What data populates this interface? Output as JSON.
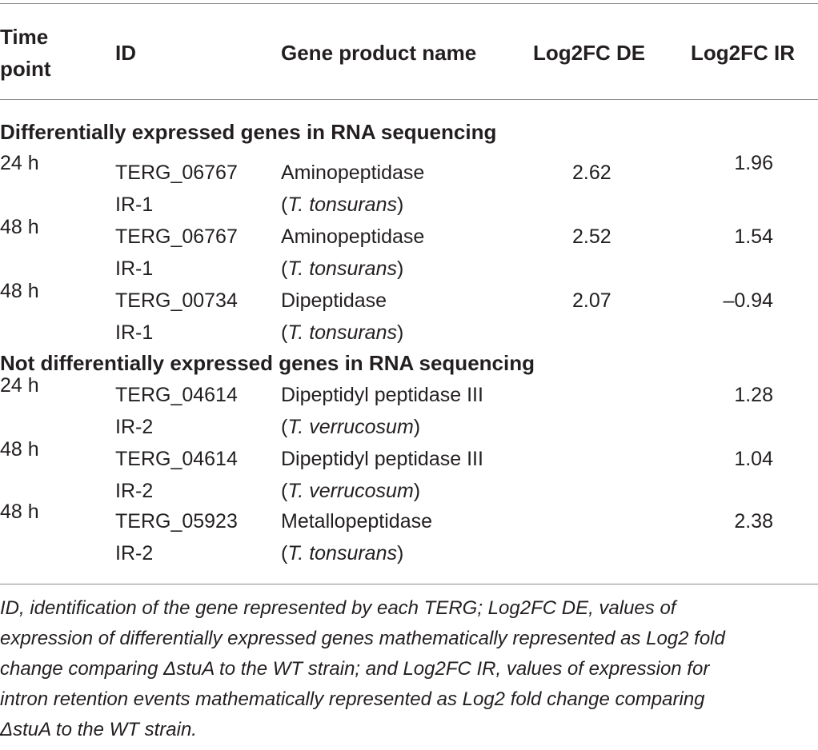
{
  "table": {
    "headers": {
      "time_line1": "Time",
      "time_line2": "point",
      "id": "ID",
      "gene_product_name": "Gene product name",
      "log2fc_de": "Log2FC DE",
      "log2fc_ir": "Log2FC IR"
    },
    "section1_title": "Differentially expressed genes in RNA sequencing",
    "section2_title": "Not differentially expressed genes in RNA sequencing",
    "rows": [
      {
        "time": "24 h",
        "id_line1": "TERG_06767",
        "id_line2": "IR-1",
        "name": "Aminopeptidase",
        "species_open": "(",
        "species": "T. tonsurans",
        "species_close": ")",
        "de": "2.62",
        "ir": "1.96"
      },
      {
        "time": "48 h",
        "id_line1": "TERG_06767",
        "id_line2": "IR-1",
        "name": "Aminopeptidase",
        "species_open": "(",
        "species": "T. tonsurans",
        "species_close": ")",
        "de": "2.52",
        "ir": "1.54"
      },
      {
        "time": "48 h",
        "id_line1": "TERG_00734",
        "id_line2": "IR-1",
        "name": "Dipeptidase",
        "species_open": "(",
        "species": "T. tonsurans",
        "species_close": ")",
        "de": "2.07",
        "ir": "–0.94"
      },
      {
        "time": "24 h",
        "id_line1": "TERG_04614",
        "id_line2": "IR-2",
        "name": "Dipeptidyl peptidase III",
        "species_open": "(",
        "species": "T. verrucosum",
        "species_close": ")",
        "de": "",
        "ir": "1.28"
      },
      {
        "time": "48 h",
        "id_line1": "TERG_04614",
        "id_line2": "IR-2",
        "name": "Dipeptidyl peptidase III",
        "species_open": "(",
        "species": "T. verrucosum",
        "species_close": ")",
        "de": "",
        "ir": "1.04"
      },
      {
        "time": "48 h",
        "id_line1": "TERG_05923",
        "id_line2": "IR-2",
        "name": "Metallopeptidase",
        "species_open": "(",
        "species": "T. tonsurans",
        "species_close": ")",
        "de": "",
        "ir": "2.38"
      }
    ]
  },
  "footnote": {
    "line1": "ID, identification of the gene represented by each TERG; Log2FC DE, values of",
    "line2": "expression of differentially expressed genes mathematically represented as Log2 fold",
    "line3": "change comparing ΔstuA to the WT strain; and Log2FC IR, values of expression for",
    "line4": "intron retention events mathematically represented as Log2 fold change comparing",
    "line5": "ΔstuA to the WT strain."
  }
}
